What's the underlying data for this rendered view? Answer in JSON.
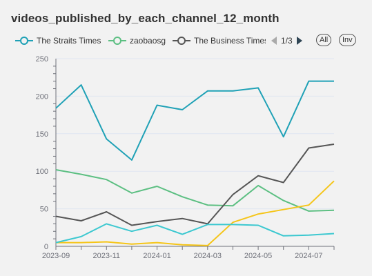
{
  "title": "videos_published_by_each_channel_12_month",
  "legend": {
    "items": [
      {
        "name": "The Straits Times",
        "color": "#1fa1b6"
      },
      {
        "name": "zaobaosg",
        "color": "#5cbf82"
      },
      {
        "name": "The Business Times",
        "color": "#555555"
      }
    ],
    "page": "1/3",
    "all_label": "All",
    "inv_label": "Inv"
  },
  "chart_data": {
    "type": "line",
    "title": "videos_published_by_each_channel_12_month",
    "x": [
      "2023-09",
      "2023-10",
      "2023-11",
      "2023-12",
      "2024-01",
      "2024-02",
      "2024-03",
      "2024-04",
      "2024-05",
      "2024-06",
      "2024-07",
      "2024-08"
    ],
    "x_tick_labels": [
      "2023-09",
      "2023-11",
      "2024-01",
      "2024-03",
      "2024-05",
      "2024-07"
    ],
    "ylim": [
      0,
      250
    ],
    "y_ticks": [
      0,
      50,
      100,
      150,
      200,
      250
    ],
    "grid": true,
    "series": [
      {
        "name": "The Straits Times",
        "color": "#1fa1b6",
        "values": [
          184,
          215,
          143,
          115,
          188,
          182,
          207,
          207,
          211,
          146,
          220,
          220
        ]
      },
      {
        "name": "zaobaosg",
        "color": "#5cbf82",
        "values": [
          102,
          96,
          89,
          71,
          80,
          66,
          55,
          54,
          81,
          61,
          47,
          48
        ]
      },
      {
        "name": "The Business Times",
        "color": "#555555",
        "values": [
          40,
          34,
          46,
          28,
          33,
          37,
          30,
          69,
          94,
          85,
          131,
          136
        ]
      },
      {
        "color": "#f5c518",
        "values": [
          5,
          5,
          6,
          3,
          5,
          2,
          1,
          32,
          43,
          49,
          55,
          87
        ]
      },
      {
        "color": "#3cc8d0",
        "values": [
          5,
          13,
          30,
          20,
          28,
          16,
          29,
          29,
          28,
          14,
          15,
          17
        ]
      }
    ]
  }
}
